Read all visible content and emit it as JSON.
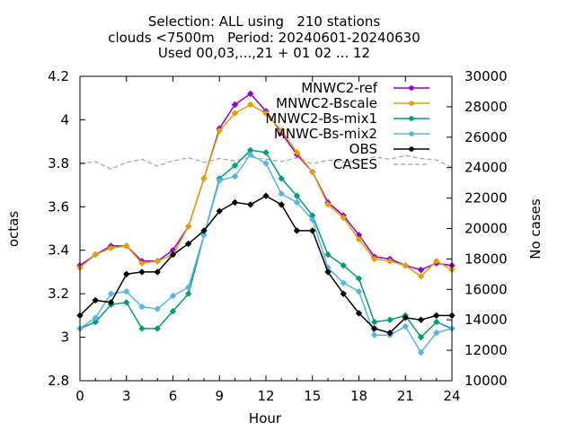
{
  "chart_data": {
    "type": "line",
    "title_lines": [
      "Selection: ALL using   210 stations",
      "clouds <7500m   Period: 20240601-20240630",
      "Used 00,03,...,21 + 01 02 ... 12"
    ],
    "xlabel": "Hour",
    "ylabel": "octas",
    "y2label": "No cases",
    "xlim": [
      0,
      24
    ],
    "ylim": [
      2.8,
      4.2
    ],
    "y2lim": [
      10000,
      30000
    ],
    "x_ticks": [
      "0",
      "3",
      "6",
      "9",
      "12",
      "15",
      "18",
      "21",
      "24"
    ],
    "y_ticks": [
      "2.8",
      "3",
      "3.2",
      "3.4",
      "3.6",
      "3.8",
      "4",
      "4.2"
    ],
    "y2_ticks": [
      "10000",
      "12000",
      "14000",
      "16000",
      "18000",
      "20000",
      "22000",
      "24000",
      "26000",
      "28000",
      "30000"
    ],
    "legend_position": "top-right",
    "x": [
      0,
      1,
      2,
      3,
      4,
      5,
      6,
      7,
      8,
      9,
      10,
      11,
      12,
      13,
      14,
      15,
      16,
      17,
      18,
      19,
      20,
      21,
      22,
      23,
      24
    ],
    "series": [
      {
        "name": "MNWC2-ref",
        "color": "#9400d3",
        "axis": "y1",
        "values": [
          3.33,
          3.38,
          3.42,
          3.42,
          3.35,
          3.35,
          3.4,
          3.51,
          3.73,
          3.96,
          4.07,
          4.12,
          4.04,
          3.94,
          3.84,
          3.76,
          3.62,
          3.56,
          3.47,
          3.37,
          3.36,
          3.33,
          3.31,
          3.34,
          3.33
        ]
      },
      {
        "name": "MNWC2-Bscale",
        "color": "#e69f00",
        "axis": "y1",
        "values": [
          3.32,
          3.38,
          3.41,
          3.42,
          3.34,
          3.35,
          3.38,
          3.51,
          3.73,
          3.95,
          4.03,
          4.07,
          4.03,
          3.95,
          3.85,
          3.76,
          3.61,
          3.55,
          3.45,
          3.36,
          3.35,
          3.33,
          3.28,
          3.35,
          3.31
        ]
      },
      {
        "name": "MNWC2-Bs-mix1",
        "color": "#009e73",
        "axis": "y1",
        "values": [
          3.04,
          3.07,
          3.15,
          3.16,
          3.04,
          3.04,
          3.12,
          3.2,
          3.47,
          3.73,
          3.79,
          3.86,
          3.85,
          3.73,
          3.65,
          3.56,
          3.38,
          3.33,
          3.27,
          3.07,
          3.08,
          3.1,
          3.0,
          3.07,
          3.04
        ]
      },
      {
        "name": "MNWC-Bs-mix2",
        "color": "#56b4e9",
        "axis": "y1",
        "values": [
          3.04,
          3.09,
          3.2,
          3.21,
          3.14,
          3.13,
          3.19,
          3.23,
          3.47,
          3.72,
          3.74,
          3.84,
          3.8,
          3.66,
          3.62,
          3.54,
          3.32,
          3.25,
          3.21,
          3.01,
          3.01,
          3.05,
          2.93,
          3.02,
          3.04
        ]
      },
      {
        "name": "OBS",
        "color": "#000000",
        "axis": "y1",
        "values": [
          3.1,
          3.17,
          3.16,
          3.29,
          3.3,
          3.3,
          3.38,
          3.43,
          3.49,
          3.58,
          3.62,
          3.61,
          3.65,
          3.61,
          3.49,
          3.49,
          3.3,
          3.2,
          3.11,
          3.04,
          3.02,
          3.09,
          3.08,
          3.1,
          3.1
        ]
      },
      {
        "name": "CASES",
        "color": "#a0a0a0",
        "axis": "y2",
        "dashed": true,
        "values": [
          24250,
          24400,
          23900,
          24350,
          24550,
          24100,
          24450,
          24650,
          24350,
          24600,
          24450,
          24700,
          24550,
          24400,
          24650,
          24250,
          24500,
          24350,
          24450,
          24700,
          24550,
          24800,
          24600,
          24500,
          24000
        ]
      }
    ]
  }
}
